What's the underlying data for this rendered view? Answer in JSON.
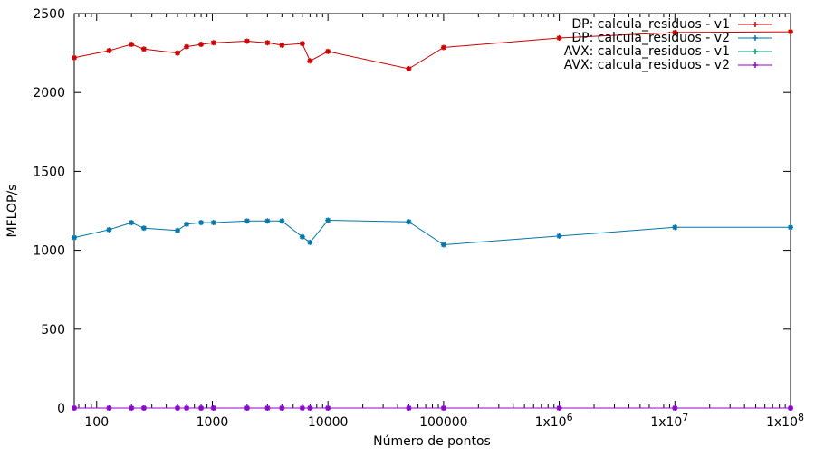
{
  "chart_data": {
    "type": "line",
    "title": "",
    "xlabel": "Número de pontos",
    "ylabel": "MFLOP/s",
    "xscale": "log",
    "xlim": [
      64,
      100000000
    ],
    "ylim": [
      0,
      2500
    ],
    "yticks": [
      0,
      500,
      1000,
      1500,
      2000,
      2500
    ],
    "xticks": [
      {
        "value": 100,
        "label": "100"
      },
      {
        "value": 1000,
        "label": "1000"
      },
      {
        "value": 10000,
        "label": "10000"
      },
      {
        "value": 100000,
        "label": "100000"
      },
      {
        "value": 1000000,
        "label": "1x10",
        "exp": "6"
      },
      {
        "value": 10000000,
        "label": "1x10",
        "exp": "7"
      },
      {
        "value": 100000000,
        "label": "1x10",
        "exp": "8"
      }
    ],
    "grid": false,
    "legend_position": "top-right",
    "x": [
      64,
      128,
      200,
      256,
      500,
      600,
      800,
      1024,
      2000,
      3000,
      4000,
      6000,
      7000,
      10000,
      50000,
      100000,
      1000000,
      10000000,
      100000000
    ],
    "series": [
      {
        "name": "DP: calcula_residuos - v1",
        "color": "#cc0000",
        "values": [
          2220,
          2265,
          2305,
          2275,
          2250,
          2290,
          2305,
          2315,
          2325,
          2315,
          2300,
          2310,
          2200,
          2260,
          2150,
          2285,
          2345,
          2380,
          2385
        ]
      },
      {
        "name": "DP: calcula_residuos - v2",
        "color": "#0077aa",
        "values": [
          1080,
          1130,
          1175,
          1140,
          1125,
          1165,
          1175,
          1175,
          1185,
          1185,
          1185,
          1085,
          1050,
          1190,
          1180,
          1035,
          1090,
          1145,
          1145
        ]
      },
      {
        "name": "AVX: calcula_residuos - v1",
        "color": "#009e73",
        "values": [
          0,
          0,
          0,
          0,
          0,
          0,
          0,
          0,
          0,
          0,
          0,
          0,
          0,
          0,
          0,
          0,
          0,
          0,
          0
        ]
      },
      {
        "name": "AVX: calcula_residuos - v2",
        "color": "#9400d3",
        "values": [
          0,
          0,
          0,
          0,
          0,
          0,
          0,
          0,
          0,
          0,
          0,
          0,
          0,
          0,
          0,
          0,
          0,
          0,
          0
        ]
      }
    ]
  }
}
